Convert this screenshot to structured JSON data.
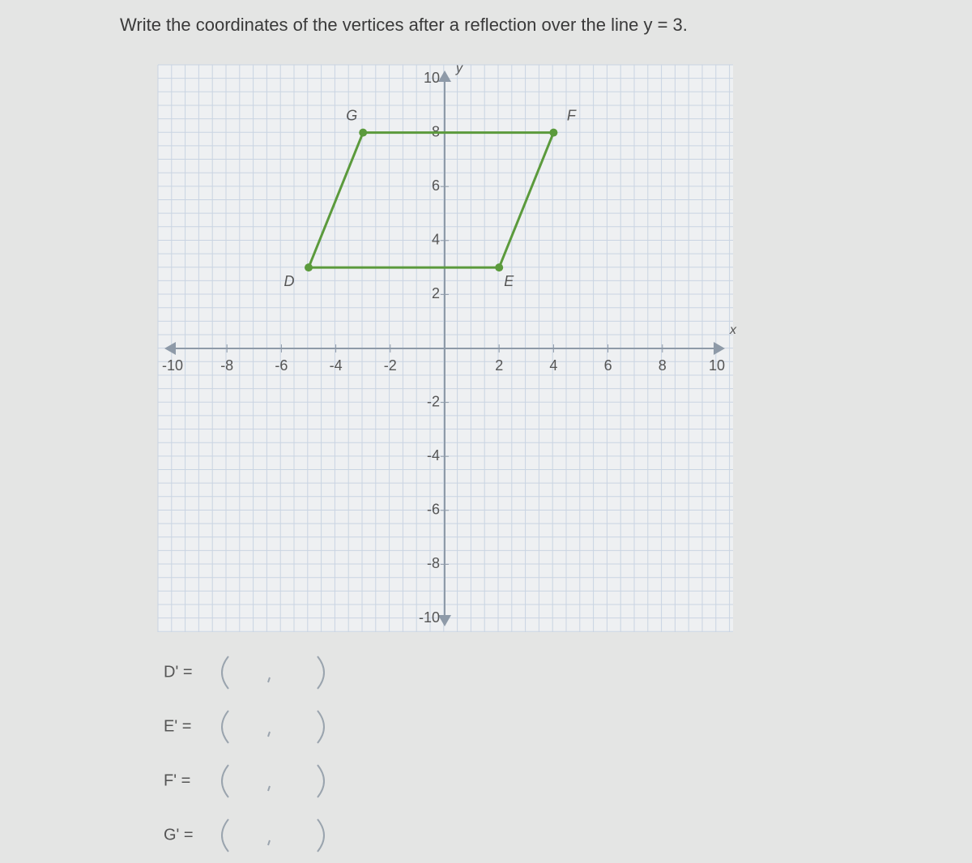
{
  "question": "Write the coordinates of the vertices after a reflection over the line y = 3.",
  "graph": {
    "x_label": "x",
    "y_label": "y",
    "xlim": [
      -10,
      10
    ],
    "ylim": [
      -10,
      10
    ],
    "xticks": [
      -10,
      -8,
      -6,
      -4,
      -2,
      2,
      4,
      6,
      8,
      10
    ],
    "yticks": [
      10,
      8,
      6,
      4,
      2,
      -2,
      -4,
      -6,
      -8,
      -10
    ],
    "color": "#5b9a3c",
    "vertices": [
      {
        "label": "D",
        "x": -5,
        "y": 3
      },
      {
        "label": "E",
        "x": 2,
        "y": 3
      },
      {
        "label": "F",
        "x": 4,
        "y": 8
      },
      {
        "label": "G",
        "x": -3,
        "y": 8
      }
    ]
  },
  "answers": [
    "D' =",
    "E' =",
    "F' =",
    "G' ="
  ]
}
